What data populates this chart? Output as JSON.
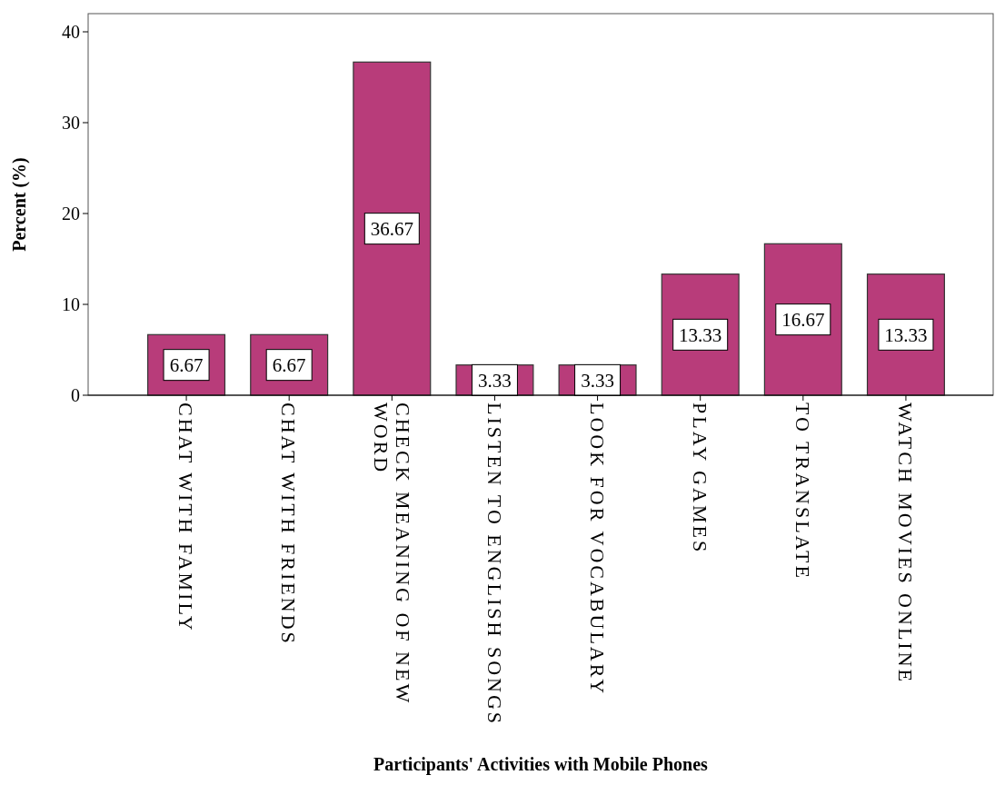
{
  "chart_data": {
    "type": "bar",
    "xlabel": "Participants' Activities with Mobile Phones",
    "ylabel": "Percent (%)",
    "categories": [
      "CHAT WITH FAMILY",
      "CHAT WITH FRIENDS",
      "CHECK MEANING OF NEW WORD",
      "LISTEN TO ENGLISH SONGS",
      "LOOK FOR VOCABULARY",
      "PLAY GAMES",
      "TO TRANSLATE",
      "WATCH MOVIES ONLINE"
    ],
    "values": [
      6.67,
      6.67,
      36.67,
      3.33,
      3.33,
      13.33,
      16.67,
      13.33
    ],
    "color": "#b83c7a",
    "ylim": [
      0,
      42
    ],
    "yticks": [
      0,
      10,
      20,
      30,
      40
    ],
    "grid": false,
    "data_labels": true
  }
}
